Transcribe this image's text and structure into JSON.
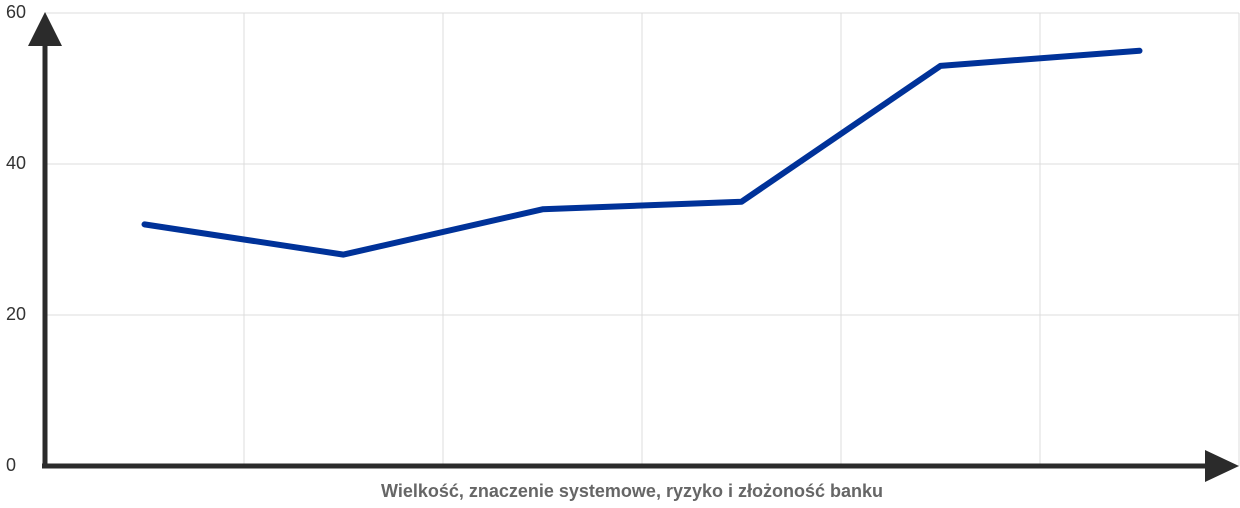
{
  "chart_data": {
    "type": "line",
    "x_label": "Wielkość, znaczenie systemowe, ryzyko i złożoność banku",
    "categories": [
      null,
      null,
      null,
      null,
      null,
      null
    ],
    "values": [
      32,
      28,
      34,
      35,
      53,
      55
    ],
    "color": "#003299",
    "ylim": [
      0,
      60
    ],
    "yticks": [
      0,
      20,
      40,
      60
    ],
    "grid": true
  }
}
